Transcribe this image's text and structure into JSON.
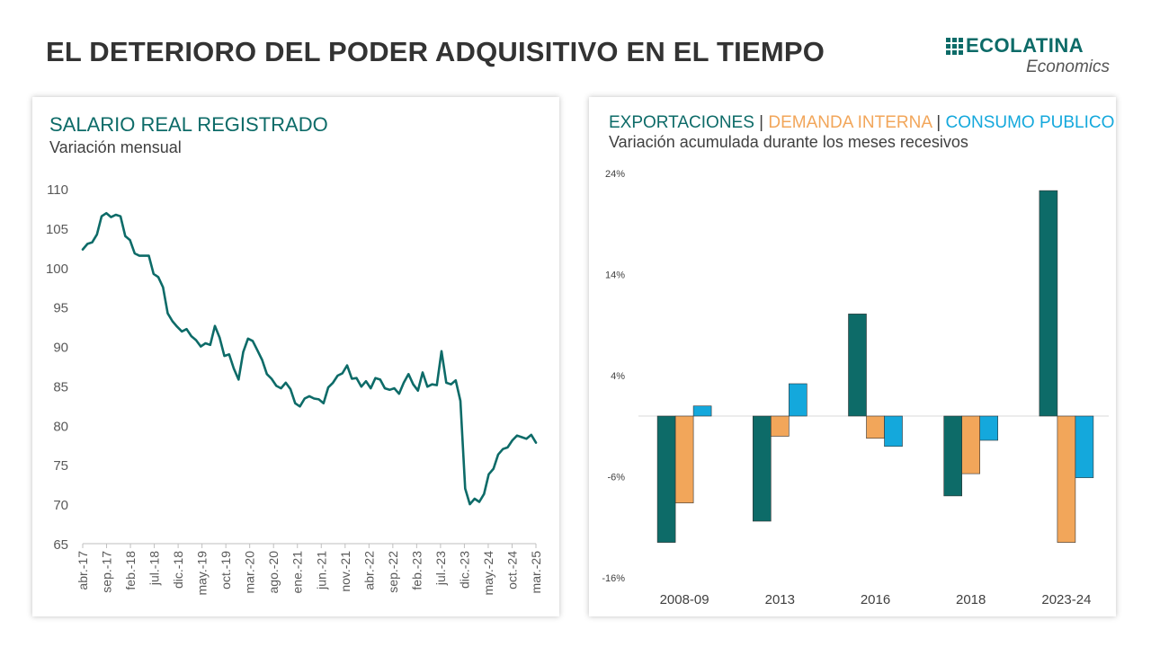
{
  "header": {
    "title": "EL DETERIORO DEL PODER ADQUISITIVO EN EL TIEMPO"
  },
  "logo": {
    "brand": "ECOLATINA",
    "sub": "Economics"
  },
  "colors": {
    "teal": "#0d6b68",
    "orange": "#f2a65a",
    "blue": "#14a8dc"
  },
  "left_panel": {
    "title": "SALARIO REAL REGISTRADO",
    "subtitle": "Variación mensual"
  },
  "right_panel": {
    "title_parts": [
      "EXPORTACIONES",
      "DEMANDA INTERNA",
      "CONSUMO PUBLICO"
    ],
    "separator": "|",
    "subtitle": "Variación acumulada durante los meses recesivos"
  },
  "chart_data": [
    {
      "type": "line",
      "title": "SALARIO REAL REGISTRADO",
      "subtitle": "Variación mensual",
      "ylim": [
        65,
        110
      ],
      "yticks": [
        110,
        105,
        100,
        95,
        90,
        85,
        80,
        75,
        70,
        65
      ],
      "xtick_labels": [
        "abr.-17",
        "sep.-17",
        "feb.-18",
        "jul.-18",
        "dic.-18",
        "may.-19",
        "oct.-19",
        "mar.-20",
        "ago.-20",
        "ene.-21",
        "jun.-21",
        "nov.-21",
        "abr.-22",
        "sep.-22",
        "feb.-23",
        "jul.-23",
        "dic.-23",
        "may.-24",
        "oct.-24",
        "mar.-25"
      ],
      "x_start": "abr.-17",
      "x_end": "mar.-25",
      "line_color": "#0d6b68",
      "values": [
        102.3,
        103.0,
        103.2,
        104.2,
        106.5,
        106.9,
        106.4,
        106.7,
        106.5,
        104.0,
        103.5,
        101.8,
        101.5,
        101.5,
        101.5,
        99.2,
        98.8,
        97.5,
        94.2,
        93.2,
        92.5,
        91.9,
        92.2,
        91.3,
        90.8,
        90.0,
        90.4,
        90.2,
        92.6,
        91.1,
        88.8,
        89.0,
        87.2,
        85.8,
        89.3,
        91.0,
        90.7,
        89.5,
        88.3,
        86.5,
        85.9,
        85.0,
        84.7,
        85.4,
        84.6,
        82.8,
        82.4,
        83.4,
        83.7,
        83.4,
        83.3,
        82.8,
        84.8,
        85.4,
        86.3,
        86.6,
        87.6,
        85.9,
        86.0,
        84.9,
        85.6,
        84.7,
        86.0,
        85.8,
        84.7,
        84.5,
        84.7,
        84.0,
        85.4,
        86.5,
        85.2,
        84.4,
        86.7,
        84.9,
        85.2,
        85.1,
        89.4,
        85.4,
        85.2,
        85.7,
        83.1,
        72.0,
        70.0,
        70.7,
        70.3,
        71.3,
        73.8,
        74.5,
        76.3,
        77.0,
        77.2,
        78.1,
        78.7,
        78.5,
        78.3,
        78.8,
        77.8
      ]
    },
    {
      "type": "bar",
      "categories": [
        "2008-09",
        "2013",
        "2016",
        "2018",
        "2023-24"
      ],
      "ylim": [
        -16,
        24
      ],
      "ytick_labels": [
        "24%",
        "14%",
        "4%",
        "-6%",
        "-16%"
      ],
      "yticks": [
        24,
        14,
        4,
        -6,
        -16
      ],
      "series": [
        {
          "name": "EXPORTACIONES",
          "color": "#0d6b68",
          "values": [
            -12.5,
            -10.4,
            10.1,
            -7.9,
            22.3
          ]
        },
        {
          "name": "DEMANDA INTERNA",
          "color": "#f2a65a",
          "values": [
            -8.6,
            -2.0,
            -2.2,
            -5.7,
            -12.5
          ]
        },
        {
          "name": "CONSUMO PUBLICO",
          "color": "#14a8dc",
          "values": [
            1.0,
            3.2,
            -3.0,
            -2.4,
            -6.1
          ]
        }
      ]
    }
  ]
}
